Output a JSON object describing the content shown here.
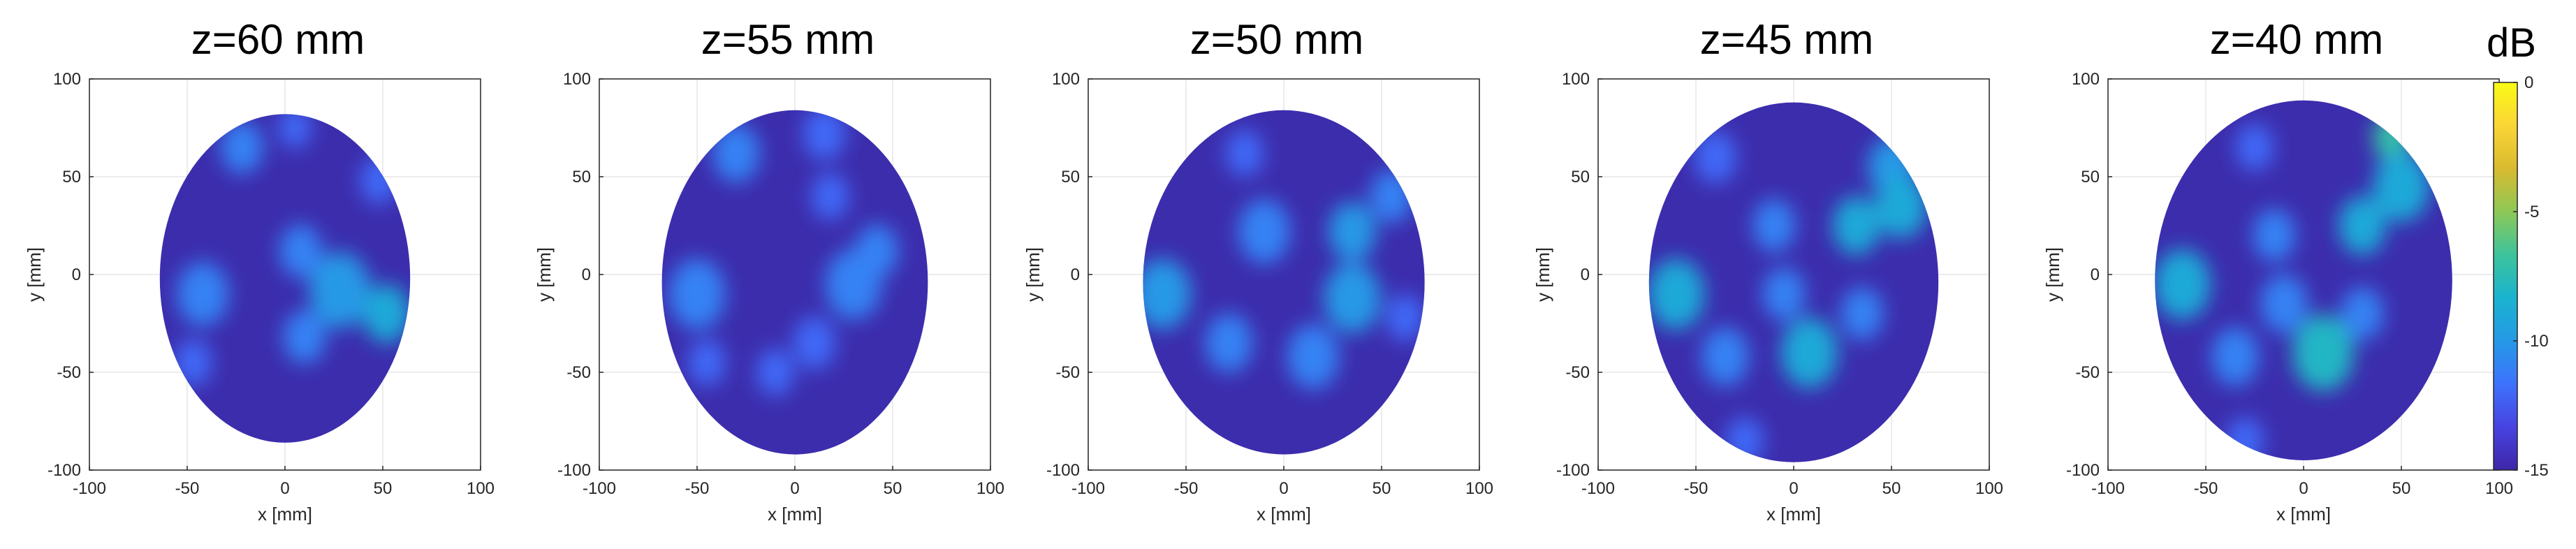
{
  "chart_data": [
    {
      "type": "heatmap",
      "title": "z=60 mm",
      "xlabel": "x [mm]",
      "ylabel": "y [mm]",
      "xlim": [
        -100,
        100
      ],
      "ylim": [
        -100,
        100
      ],
      "xticks": [
        -100,
        -50,
        0,
        50,
        100
      ],
      "yticks": [
        100,
        50,
        0,
        -50,
        -100
      ],
      "outline": {
        "cx": 0,
        "cy": -2,
        "rx": 64,
        "ry": 84
      },
      "hotspots": [
        {
          "x": -22,
          "y": 65,
          "r": 9,
          "level": -11
        },
        {
          "x": 5,
          "y": 75,
          "r": 7,
          "level": -12
        },
        {
          "x": 48,
          "y": 48,
          "r": 8,
          "level": -12
        },
        {
          "x": 8,
          "y": 12,
          "r": 9,
          "level": -11
        },
        {
          "x": 28,
          "y": -8,
          "r": 13,
          "level": -10
        },
        {
          "x": 52,
          "y": -20,
          "r": 10,
          "level": -9
        },
        {
          "x": -42,
          "y": -10,
          "r": 11,
          "level": -11
        },
        {
          "x": 10,
          "y": -32,
          "r": 9,
          "level": -11
        },
        {
          "x": -47,
          "y": -45,
          "r": 8,
          "level": -12
        }
      ]
    },
    {
      "type": "heatmap",
      "title": "z=55 mm",
      "xlabel": "x [mm]",
      "ylabel": "y [mm]",
      "xlim": [
        -100,
        100
      ],
      "ylim": [
        -100,
        100
      ],
      "xticks": [
        -100,
        -50,
        0,
        50,
        100
      ],
      "yticks": [
        100,
        50,
        0,
        -50,
        -100
      ],
      "outline": {
        "cx": 0,
        "cy": -4,
        "rx": 68,
        "ry": 88
      },
      "hotspots": [
        {
          "x": -30,
          "y": 62,
          "r": 10,
          "level": -11
        },
        {
          "x": 15,
          "y": 72,
          "r": 9,
          "level": -12
        },
        {
          "x": 18,
          "y": 40,
          "r": 8,
          "level": -12
        },
        {
          "x": -50,
          "y": -10,
          "r": 12,
          "level": -11
        },
        {
          "x": 30,
          "y": -5,
          "r": 12,
          "level": -11
        },
        {
          "x": 42,
          "y": 12,
          "r": 9,
          "level": -11
        },
        {
          "x": 10,
          "y": -35,
          "r": 9,
          "level": -12
        },
        {
          "x": -10,
          "y": -50,
          "r": 8,
          "level": -12
        },
        {
          "x": -45,
          "y": -45,
          "r": 8,
          "level": -12
        }
      ]
    },
    {
      "type": "heatmap",
      "title": "z=50 mm",
      "xlabel": "x [mm]",
      "ylabel": "y [mm]",
      "xlim": [
        -100,
        100
      ],
      "ylim": [
        -100,
        100
      ],
      "xticks": [
        -100,
        -50,
        0,
        50,
        100
      ],
      "yticks": [
        100,
        50,
        0,
        -50,
        -100
      ],
      "outline": {
        "cx": 0,
        "cy": -4,
        "rx": 72,
        "ry": 88
      },
      "hotspots": [
        {
          "x": -20,
          "y": 62,
          "r": 8,
          "level": -12
        },
        {
          "x": 55,
          "y": 40,
          "r": 9,
          "level": -11
        },
        {
          "x": -10,
          "y": 22,
          "r": 11,
          "level": -11
        },
        {
          "x": 35,
          "y": 22,
          "r": 10,
          "level": -10
        },
        {
          "x": -62,
          "y": -10,
          "r": 12,
          "level": -10
        },
        {
          "x": 35,
          "y": -12,
          "r": 12,
          "level": -10
        },
        {
          "x": 15,
          "y": -42,
          "r": 11,
          "level": -11
        },
        {
          "x": -28,
          "y": -35,
          "r": 10,
          "level": -11
        },
        {
          "x": 62,
          "y": -22,
          "r": 8,
          "level": -12
        }
      ]
    },
    {
      "type": "heatmap",
      "title": "z=45 mm",
      "xlabel": "x [mm]",
      "ylabel": "y [mm]",
      "xlim": [
        -100,
        100
      ],
      "ylim": [
        -100,
        100
      ],
      "xticks": [
        -100,
        -50,
        0,
        50,
        100
      ],
      "yticks": [
        100,
        50,
        0,
        -50,
        -100
      ],
      "outline": {
        "cx": 0,
        "cy": -4,
        "rx": 74,
        "ry": 92
      },
      "hotspots": [
        {
          "x": -40,
          "y": 60,
          "r": 9,
          "level": -12
        },
        {
          "x": 50,
          "y": 55,
          "r": 10,
          "level": -10
        },
        {
          "x": 55,
          "y": 35,
          "r": 11,
          "level": -9
        },
        {
          "x": 32,
          "y": 25,
          "r": 10,
          "level": -9
        },
        {
          "x": -10,
          "y": 25,
          "r": 9,
          "level": -11
        },
        {
          "x": -60,
          "y": -10,
          "r": 12,
          "level": -9
        },
        {
          "x": -5,
          "y": -10,
          "r": 9,
          "level": -11
        },
        {
          "x": 35,
          "y": -20,
          "r": 9,
          "level": -11
        },
        {
          "x": 8,
          "y": -40,
          "r": 12,
          "level": -9
        },
        {
          "x": -35,
          "y": -42,
          "r": 10,
          "level": -11
        },
        {
          "x": -25,
          "y": -85,
          "r": 8,
          "level": -12
        }
      ]
    },
    {
      "type": "heatmap",
      "title": "z=40 mm",
      "xlabel": "x [mm]",
      "ylabel": "y [mm]",
      "xlim": [
        -100,
        100
      ],
      "ylim": [
        -100,
        100
      ],
      "xticks": [
        -100,
        -50,
        0,
        50,
        100
      ],
      "yticks": [
        100,
        50,
        0,
        -50,
        -100
      ],
      "outline": {
        "cx": 0,
        "cy": -3,
        "rx": 76,
        "ry": 92
      },
      "hotspots": [
        {
          "x": -25,
          "y": 65,
          "r": 8,
          "level": -12
        },
        {
          "x": 45,
          "y": 70,
          "r": 8,
          "level": -7
        },
        {
          "x": 50,
          "y": 45,
          "r": 12,
          "level": -9
        },
        {
          "x": 30,
          "y": 25,
          "r": 10,
          "level": -9
        },
        {
          "x": -15,
          "y": 20,
          "r": 9,
          "level": -11
        },
        {
          "x": -62,
          "y": -5,
          "r": 12,
          "level": -9
        },
        {
          "x": -10,
          "y": -15,
          "r": 10,
          "level": -11
        },
        {
          "x": 30,
          "y": -20,
          "r": 9,
          "level": -11
        },
        {
          "x": 10,
          "y": -40,
          "r": 13,
          "level": -8
        },
        {
          "x": -35,
          "y": -42,
          "r": 10,
          "level": -11
        },
        {
          "x": -30,
          "y": -85,
          "r": 8,
          "level": -12
        }
      ]
    }
  ],
  "colorbar": {
    "title": "dB",
    "min": -15,
    "max": 0,
    "ticks": [
      0,
      -5,
      -10,
      -15
    ],
    "colors": [
      "#3e26a8",
      "#4743e1",
      "#3e72fd",
      "#2599e6",
      "#1ab3cf",
      "#3dc39c",
      "#8ec857",
      "#d9ba2f",
      "#fbd537",
      "#f9fb15"
    ]
  },
  "background": {
    "inside": "#3c2dad",
    "outside": "#ffffff"
  }
}
